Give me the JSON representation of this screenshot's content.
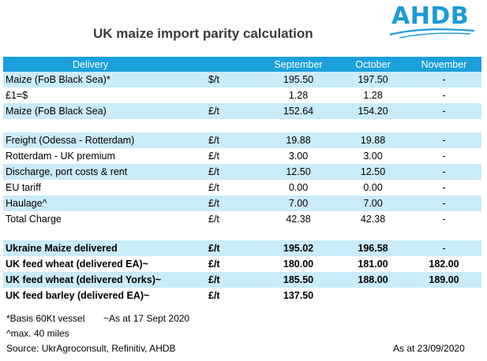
{
  "title": "UK maize import parity calculation",
  "logo": {
    "text": "AHDB",
    "color": "#1a9bd7"
  },
  "colors": {
    "header": "#1ba0db",
    "band": "#c9ebfa"
  },
  "columns": {
    "delivery": "Delivery",
    "m1": "September",
    "m2": "October",
    "m3": "November"
  },
  "rows": [
    {
      "label": "Maize (FoB Black Sea)*",
      "unit": "$/t",
      "v1": "195.50",
      "v2": "197.50",
      "v3": "-"
    },
    {
      "label": "£1=$",
      "unit": "",
      "v1": "1.28",
      "v2": "1.28",
      "v3": "-"
    },
    {
      "label": "Maize (FoB Black Sea)",
      "unit": "£/t",
      "v1": "152.64",
      "v2": "154.20",
      "v3": "-"
    },
    {
      "label": "Freight (Odessa - Rotterdam)",
      "unit": "£/t",
      "v1": "19.88",
      "v2": "19.88",
      "v3": "-"
    },
    {
      "label": "Rotterdam - UK premium",
      "unit": "£/t",
      "v1": "3.00",
      "v2": "3.00",
      "v3": "-"
    },
    {
      "label": "Discharge, port costs & rent",
      "unit": "£/t",
      "v1": "12.50",
      "v2": "12.50",
      "v3": "-"
    },
    {
      "label": "EU tariff",
      "unit": "£/t",
      "v1": "0.00",
      "v2": "0.00",
      "v3": "-"
    },
    {
      "label": "Haulage^",
      "unit": "£/t",
      "v1": "7.00",
      "v2": "7.00",
      "v3": "-"
    },
    {
      "label": "Total Charge",
      "unit": "£/t",
      "v1": "42.38",
      "v2": "42.38",
      "v3": "-"
    },
    {
      "label": "Ukraine Maize delivered",
      "unit": "£/t",
      "v1": "195.02",
      "v2": "196.58",
      "v3": "-"
    },
    {
      "label": "UK feed wheat (delivered EA)~",
      "unit": "£/t",
      "v1": "180.00",
      "v2": "181.00",
      "v3": "182.00"
    },
    {
      "label": "UK feed wheat (delivered Yorks)~",
      "unit": "£/t",
      "v1": "185.50",
      "v2": "188.00",
      "v3": "189.00"
    },
    {
      "label": "UK feed barley (delivered EA)~",
      "unit": "£/t",
      "v1": "137.50",
      "v2": "",
      "v3": ""
    }
  ],
  "footnotes": {
    "basis": "*Basis 60Kt vessel",
    "asat_sept": "~As at 17 Sept 2020",
    "haulage": "^max. 40 miles",
    "source": "Source: UkrAgroconsult, Refinitiv, AHDB",
    "asat": "As at 23/09/2020"
  }
}
